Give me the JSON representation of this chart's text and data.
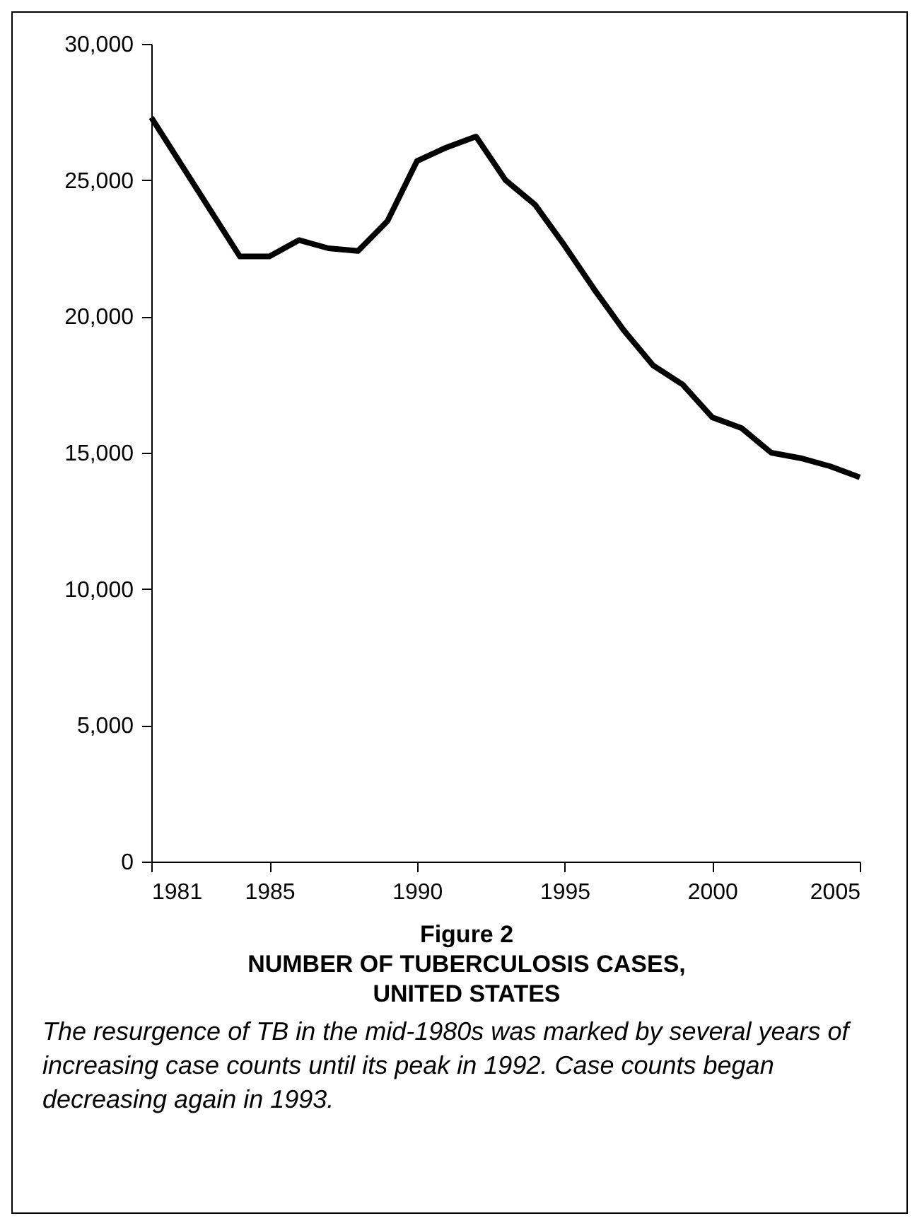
{
  "chart_data": {
    "type": "line",
    "title": "Figure 2",
    "subtitle": "NUMBER OF TUBERCULOSIS CASES, UNITED STATES",
    "annotations": [
      "The resurgence of TB in the mid-1980s was marked by several years of increasing case counts until its peak in 1992. Case counts began decreasing again in 1993."
    ],
    "x": [
      1981,
      1982,
      1983,
      1984,
      1985,
      1986,
      1987,
      1988,
      1989,
      1990,
      1991,
      1992,
      1993,
      1994,
      1995,
      1996,
      1997,
      1998,
      1999,
      2000,
      2001,
      2002,
      2003,
      2004,
      2005
    ],
    "series": [
      {
        "color": "#000000",
        "values": [
          27300,
          25600,
          23900,
          22200,
          22200,
          22800,
          22500,
          22400,
          23500,
          25700,
          26200,
          26600,
          25000,
          24100,
          22600,
          21000,
          19500,
          18200,
          17500,
          16300,
          15900,
          15000,
          14800,
          14500,
          14100
        ]
      }
    ],
    "xlim": [
      1981,
      2005
    ],
    "xticks": [
      1981,
      1985,
      1990,
      1995,
      2000,
      2005
    ],
    "ylim": [
      0,
      30000
    ],
    "yticks": [
      0,
      {
        "value": 5000,
        "label": "5,000"
      },
      {
        "value": 10000,
        "label": "10,000"
      },
      {
        "value": 15000,
        "label": "15,000"
      },
      {
        "value": 20000,
        "label": "20,000"
      },
      {
        "value": 25000,
        "label": "25,000"
      },
      {
        "value": 30000,
        "label": "30,000"
      }
    ],
    "grid": false,
    "marker": "none",
    "line_style": "solid"
  }
}
